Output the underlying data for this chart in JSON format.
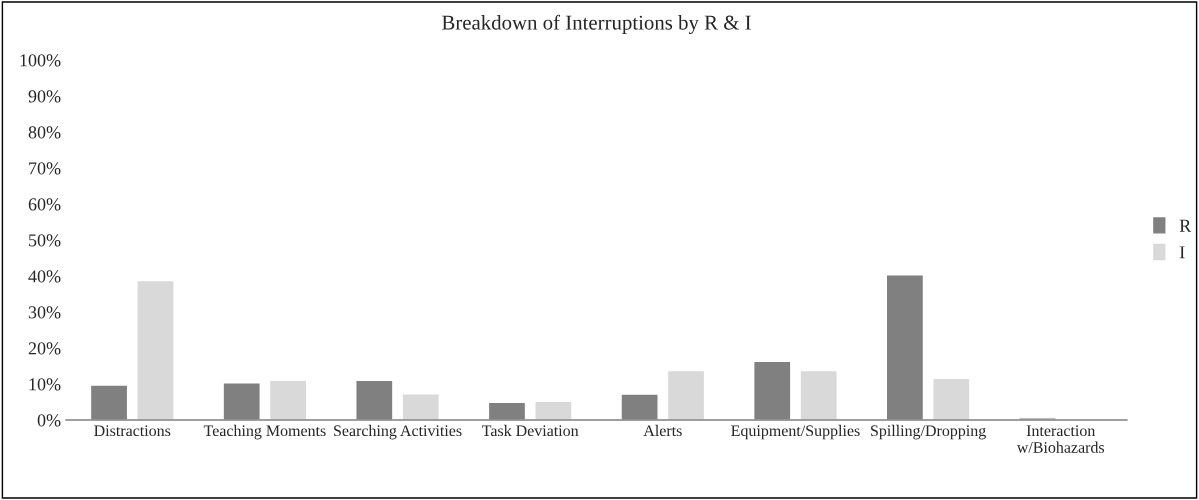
{
  "chart_data": {
    "type": "bar",
    "title": "Breakdown of Interruptions by R & I",
    "categories": [
      "Distractions",
      "Teaching Moments",
      "Searching Activities",
      "Task Deviation",
      "Alerts",
      "Equipment/Supplies",
      "Spilling/Dropping",
      "Interaction\nw/Biohazards"
    ],
    "series": [
      {
        "name": "R",
        "color": "#808080",
        "values": [
          9.7,
          10.3,
          11.0,
          4.9,
          7.2,
          16.3,
          40.3,
          0.6
        ]
      },
      {
        "name": "I",
        "color": "#d9d9d9",
        "values": [
          38.7,
          11.0,
          7.3,
          5.2,
          13.7,
          13.7,
          11.6,
          null
        ]
      }
    ],
    "ylim": [
      0,
      100
    ],
    "yticks": [
      {
        "value": 0,
        "label": "0%"
      },
      {
        "value": 10,
        "label": "10%"
      },
      {
        "value": 20,
        "label": "20%"
      },
      {
        "value": 30,
        "label": "30%"
      },
      {
        "value": 40,
        "label": "40%"
      },
      {
        "value": 50,
        "label": "50%"
      },
      {
        "value": 60,
        "label": "60%"
      },
      {
        "value": 70,
        "label": "70%"
      },
      {
        "value": 80,
        "label": "80%"
      },
      {
        "value": 90,
        "label": "90%"
      },
      {
        "value": 100,
        "label": "100%"
      }
    ],
    "grid": false,
    "legend": "right"
  }
}
